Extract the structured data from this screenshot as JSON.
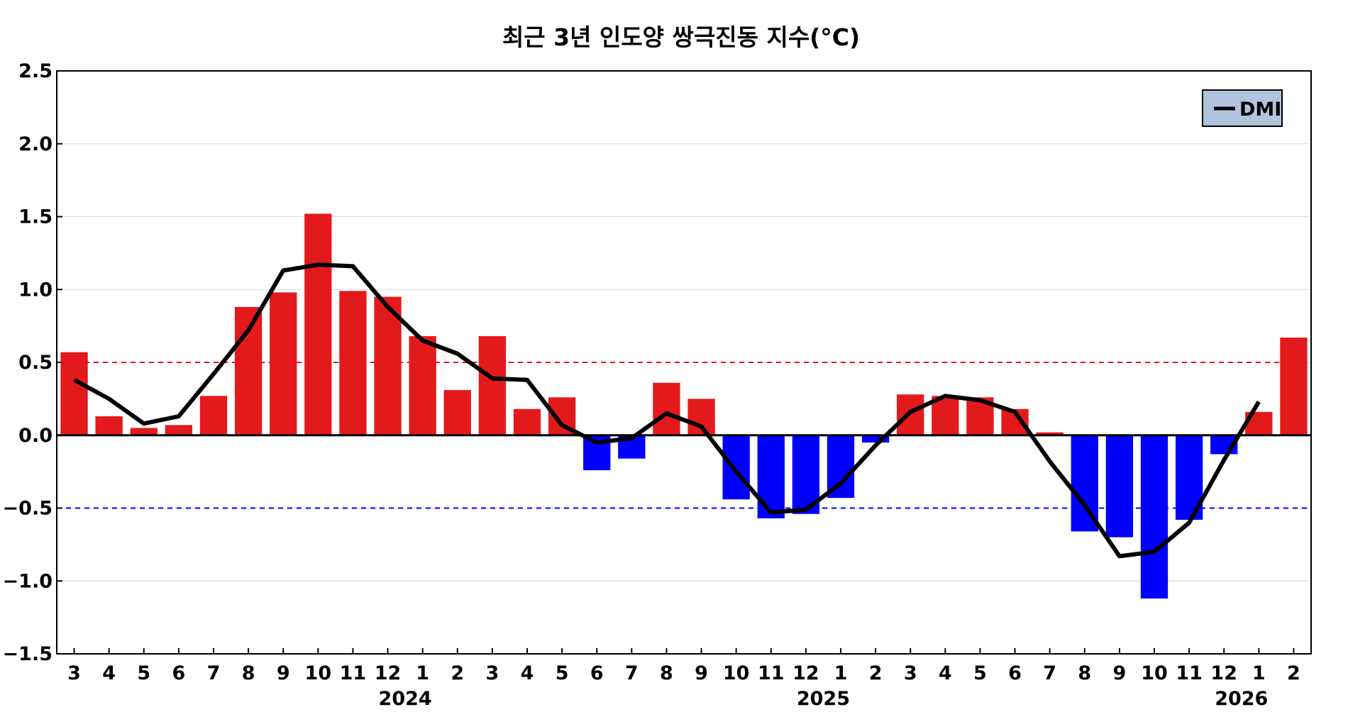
{
  "chart_data": {
    "type": "bar",
    "title": "최근 3년 인도양 쌍극진동 지수(°C)",
    "xlabel": "",
    "ylabel": "",
    "ylim": [
      -1.5,
      2.5
    ],
    "yticks": [
      "2.5",
      "2.0",
      "1.5",
      "1.0",
      "0.5",
      "0.0",
      "−0.5",
      "−1.0",
      "−1.5"
    ],
    "ytick_values": [
      2.5,
      2.0,
      1.5,
      1.0,
      0.5,
      0.0,
      -0.5,
      -1.0,
      -1.5
    ],
    "categories": [
      "3",
      "4",
      "5",
      "6",
      "7",
      "8",
      "9",
      "10",
      "11",
      "12",
      "1",
      "2",
      "3",
      "4",
      "5",
      "6",
      "7",
      "8",
      "9",
      "10",
      "11",
      "12",
      "1",
      "2",
      "3",
      "4",
      "5",
      "6",
      "7",
      "8",
      "9",
      "10",
      "11",
      "12",
      "1",
      "2"
    ],
    "year_labels": [
      {
        "label": "2024",
        "index": 10
      },
      {
        "label": "2025",
        "index": 22
      },
      {
        "label": "2026",
        "index": 34
      }
    ],
    "series": [
      {
        "type": "bar",
        "values": [
          0.57,
          0.13,
          0.05,
          0.07,
          0.27,
          0.88,
          0.98,
          1.52,
          0.99,
          0.95,
          0.68,
          0.31,
          0.68,
          0.18,
          0.26,
          -0.24,
          -0.16,
          0.36,
          0.25,
          -0.44,
          -0.57,
          -0.54,
          -0.43,
          -0.05,
          0.28,
          0.27,
          0.26,
          0.18,
          0.02,
          -0.66,
          -0.7,
          -1.12,
          -0.58,
          -0.13,
          0.16,
          0.67
        ],
        "positive_color": "#e31a1c",
        "negative_color": "#0000ff"
      },
      {
        "name": "DMI",
        "type": "line",
        "values": [
          0.38,
          0.25,
          0.08,
          0.13,
          0.42,
          0.72,
          1.13,
          1.17,
          1.16,
          0.88,
          0.65,
          0.56,
          0.39,
          0.38,
          0.07,
          -0.05,
          -0.02,
          0.15,
          0.06,
          -0.25,
          -0.53,
          -0.51,
          -0.33,
          -0.07,
          0.16,
          0.27,
          0.24,
          0.16,
          -0.18,
          -0.48,
          -0.83,
          -0.8,
          -0.6,
          -0.17,
          0.23,
          null
        ],
        "color": "#000000"
      }
    ],
    "reference_lines": [
      {
        "value": 0.5,
        "color": "#e31a1c",
        "style": "dashed"
      },
      {
        "value": -0.5,
        "color": "#0000ff",
        "style": "dashed"
      },
      {
        "value": 0.0,
        "color": "#000000",
        "style": "solid"
      }
    ],
    "legend": {
      "position": "top-right",
      "background": "#b0c4de"
    },
    "grid": true
  }
}
